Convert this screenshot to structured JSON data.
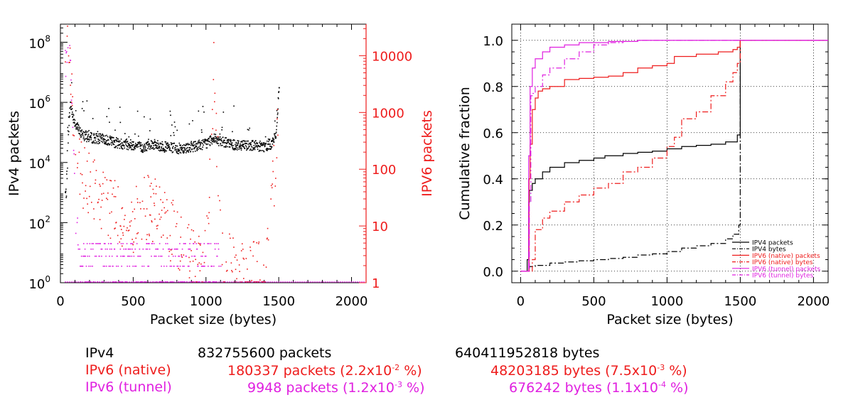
{
  "colors": {
    "ipv4": "#000000",
    "ipv6_native": "#ee1c1c",
    "ipv6_tunnel": "#e020e0",
    "grid": "#000000"
  },
  "chart_data": [
    {
      "type": "scatter",
      "xlabel": "Packet size (bytes)",
      "ylabel": "IPv4 packets",
      "y2label": "IPV6 packets",
      "xlim": [
        0,
        2100
      ],
      "ylim": [
        1,
        400000000
      ],
      "y2lim": [
        1,
        36000
      ],
      "yscale": "log",
      "y2scale": "log",
      "xticks": [
        "0",
        "500",
        "1000",
        "1500",
        "2000"
      ],
      "yticks": [
        {
          "base": "10",
          "exp": "0"
        },
        {
          "base": "10",
          "exp": "2"
        },
        {
          "base": "10",
          "exp": "4"
        },
        {
          "base": "10",
          "exp": "6"
        },
        {
          "base": "10",
          "exp": "8"
        }
      ],
      "y2ticks": [
        "1",
        "10",
        "100",
        "1000",
        "10000"
      ],
      "grid": false,
      "series": [
        {
          "name": "IPv4",
          "axis": "left",
          "color": "#000000",
          "x": [
            40,
            52,
            64,
            80,
            100,
            140,
            200,
            260,
            300,
            400,
            500,
            576,
            600,
            700,
            800,
            900,
            1000,
            1050,
            1100,
            1200,
            1300,
            1400,
            1450,
            1480,
            1500
          ],
          "y": [
            1000,
            100000,
            1000000,
            400000,
            200000,
            90000,
            70000,
            65000,
            60000,
            45000,
            40000,
            30000,
            45000,
            35000,
            30000,
            35000,
            45000,
            70000,
            50000,
            40000,
            40000,
            35000,
            45000,
            100000,
            4000000
          ]
        },
        {
          "name": "IPv6 (native)",
          "axis": "right",
          "color": "#ee1c1c",
          "x": [
            60,
            80,
            100,
            120,
            150,
            200,
            250,
            300,
            400,
            500,
            600,
            650,
            700,
            750,
            800,
            900,
            1000,
            1050,
            1100,
            1200,
            1300,
            1400,
            1500
          ],
          "y": [
            15000,
            3000,
            800,
            300,
            150,
            80,
            60,
            40,
            30,
            20,
            40,
            30,
            25,
            15,
            10,
            6,
            5,
            10000,
            6,
            4,
            3,
            2,
            1500
          ]
        },
        {
          "name": "IPv6 (tunnel)",
          "axis": "right",
          "color": "#e020e0",
          "x": [
            60,
            80,
            100,
            150,
            200,
            300,
            400,
            500,
            600,
            700,
            800,
            900,
            1000,
            1200,
            1400,
            1500
          ],
          "y": [
            8000,
            1000,
            10,
            5,
            4,
            3,
            3,
            2,
            2,
            2,
            2,
            1,
            1,
            1,
            1,
            1
          ]
        }
      ]
    },
    {
      "type": "line",
      "xlabel": "Packet size (bytes)",
      "ylabel": "Cumulative fraction",
      "xlim": [
        -60,
        2100
      ],
      "ylim": [
        -0.05,
        1.07
      ],
      "xticks": [
        "0",
        "500",
        "1000",
        "1500",
        "2000"
      ],
      "yticks": [
        "0.0",
        "0.2",
        "0.4",
        "0.6",
        "0.8",
        "1.0"
      ],
      "grid": true,
      "legend_position": "bottom-right",
      "series": [
        {
          "name": "IPV4 packets",
          "color": "#000000",
          "style": "solid",
          "x": [
            0,
            40,
            45,
            55,
            60,
            80,
            100,
            150,
            200,
            300,
            400,
            500,
            576,
            700,
            800,
            900,
            1000,
            1100,
            1200,
            1300,
            1400,
            1480,
            1499,
            1500,
            2100
          ],
          "y": [
            0,
            0,
            0.05,
            0.3,
            0.35,
            0.38,
            0.4,
            0.43,
            0.45,
            0.47,
            0.48,
            0.49,
            0.5,
            0.51,
            0.515,
            0.52,
            0.53,
            0.54,
            0.545,
            0.55,
            0.56,
            0.59,
            0.6,
            1.0,
            1.0
          ]
        },
        {
          "name": "IPV4 bytes",
          "color": "#000000",
          "style": "dashdot",
          "x": [
            0,
            40,
            60,
            100,
            200,
            300,
            400,
            500,
            600,
            700,
            800,
            900,
            1000,
            1100,
            1200,
            1300,
            1400,
            1450,
            1490,
            1500,
            2100
          ],
          "y": [
            0,
            0,
            0.02,
            0.025,
            0.035,
            0.04,
            0.045,
            0.05,
            0.055,
            0.06,
            0.07,
            0.075,
            0.085,
            0.1,
            0.11,
            0.12,
            0.14,
            0.16,
            0.2,
            1.0,
            1.0
          ]
        },
        {
          "name": "IPV6 (native) packets",
          "color": "#ee1c1c",
          "style": "solid",
          "x": [
            0,
            50,
            58,
            65,
            80,
            100,
            120,
            150,
            200,
            300,
            400,
            500,
            600,
            700,
            800,
            900,
            1000,
            1050,
            1100,
            1200,
            1300,
            1350,
            1450,
            1480,
            1500,
            2100
          ],
          "y": [
            0,
            0,
            0.4,
            0.55,
            0.7,
            0.75,
            0.78,
            0.79,
            0.8,
            0.83,
            0.835,
            0.84,
            0.845,
            0.86,
            0.88,
            0.89,
            0.9,
            0.93,
            0.93,
            0.94,
            0.94,
            0.95,
            0.96,
            0.97,
            1.0,
            1.0
          ]
        },
        {
          "name": "IPV6 (native) bytes",
          "color": "#ee1c1c",
          "style": "dashdot",
          "x": [
            0,
            60,
            80,
            100,
            150,
            200,
            300,
            400,
            500,
            600,
            700,
            800,
            900,
            1000,
            1050,
            1100,
            1200,
            1300,
            1400,
            1450,
            1480,
            1500,
            2100
          ],
          "y": [
            0,
            0,
            0.05,
            0.18,
            0.23,
            0.26,
            0.3,
            0.33,
            0.36,
            0.38,
            0.43,
            0.45,
            0.49,
            0.54,
            0.58,
            0.66,
            0.69,
            0.76,
            0.82,
            0.86,
            0.9,
            1.0,
            1.0
          ]
        },
        {
          "name": "IPV6 (tunnel) packets",
          "color": "#e020e0",
          "style": "solid",
          "x": [
            0,
            45,
            55,
            65,
            80,
            100,
            150,
            200,
            300,
            400,
            600,
            800,
            2100
          ],
          "y": [
            0,
            0,
            0.5,
            0.8,
            0.88,
            0.92,
            0.95,
            0.97,
            0.98,
            0.99,
            0.995,
            1.0,
            1.0
          ]
        },
        {
          "name": "IPV6 (tunnel) bytes",
          "color": "#e020e0",
          "style": "dashdot",
          "x": [
            0,
            50,
            60,
            70,
            80,
            100,
            150,
            200,
            300,
            400,
            500,
            600,
            700,
            800,
            2100
          ],
          "y": [
            0,
            0,
            0.3,
            0.76,
            0.77,
            0.8,
            0.85,
            0.88,
            0.92,
            0.95,
            0.98,
            0.99,
            0.995,
            1.0,
            1.0
          ]
        }
      ]
    }
  ],
  "stats": [
    {
      "label": "IPv4",
      "packets": "832755600",
      "packets_unit": "packets",
      "packets_pct": "",
      "packets_pct_exp": "",
      "bytes": "640411952818",
      "bytes_unit": "bytes",
      "bytes_pct": "",
      "bytes_pct_exp": ""
    },
    {
      "label": "IPv6 (native)",
      "packets": "180337",
      "packets_unit": "packets",
      "packets_pct": "(2.2x10",
      "packets_pct_exp": "-2",
      "packets_pct_tail": " %)",
      "bytes": "48203185",
      "bytes_unit": "bytes",
      "bytes_pct": "(7.5x10",
      "bytes_pct_exp": "-3",
      "bytes_pct_tail": " %)"
    },
    {
      "label": "IPv6 (tunnel)",
      "packets": "9948",
      "packets_unit": "packets",
      "packets_pct": "(1.2x10",
      "packets_pct_exp": "-3",
      "packets_pct_tail": " %)",
      "bytes": "676242",
      "bytes_unit": "bytes",
      "bytes_pct": "(1.1x10",
      "bytes_pct_exp": "-4",
      "bytes_pct_tail": " %)"
    }
  ]
}
